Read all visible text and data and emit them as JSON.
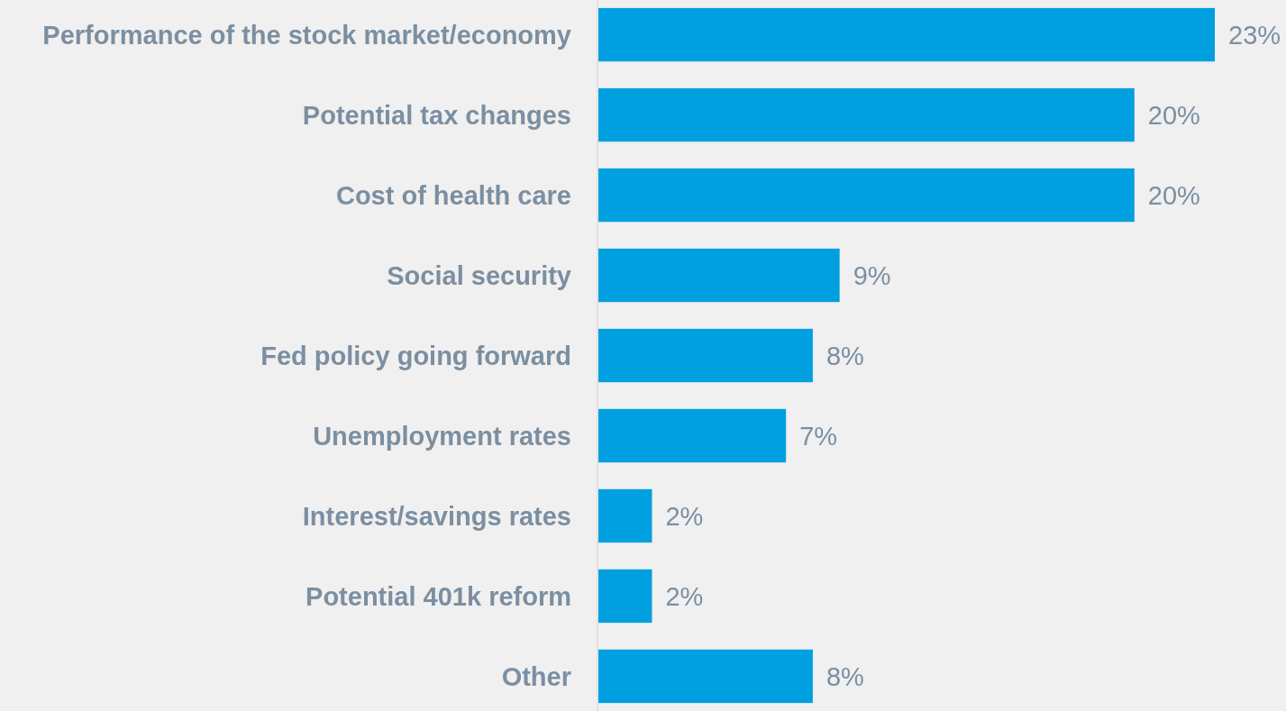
{
  "chart_data": {
    "type": "bar",
    "orientation": "horizontal",
    "categories": [
      "Performance of the stock market/economy",
      "Potential tax changes",
      "Cost of health care",
      "Social security",
      "Fed policy going forward",
      "Unemployment rates",
      "Interest/savings rates",
      "Potential 401k reform",
      "Other"
    ],
    "values": [
      23,
      20,
      20,
      9,
      8,
      7,
      2,
      2,
      8
    ],
    "color": "#00a0e0",
    "value_labels": [
      "23%",
      "20%",
      "20%",
      "9%",
      "8%",
      "7%",
      "2%",
      "2%",
      "8%"
    ]
  }
}
